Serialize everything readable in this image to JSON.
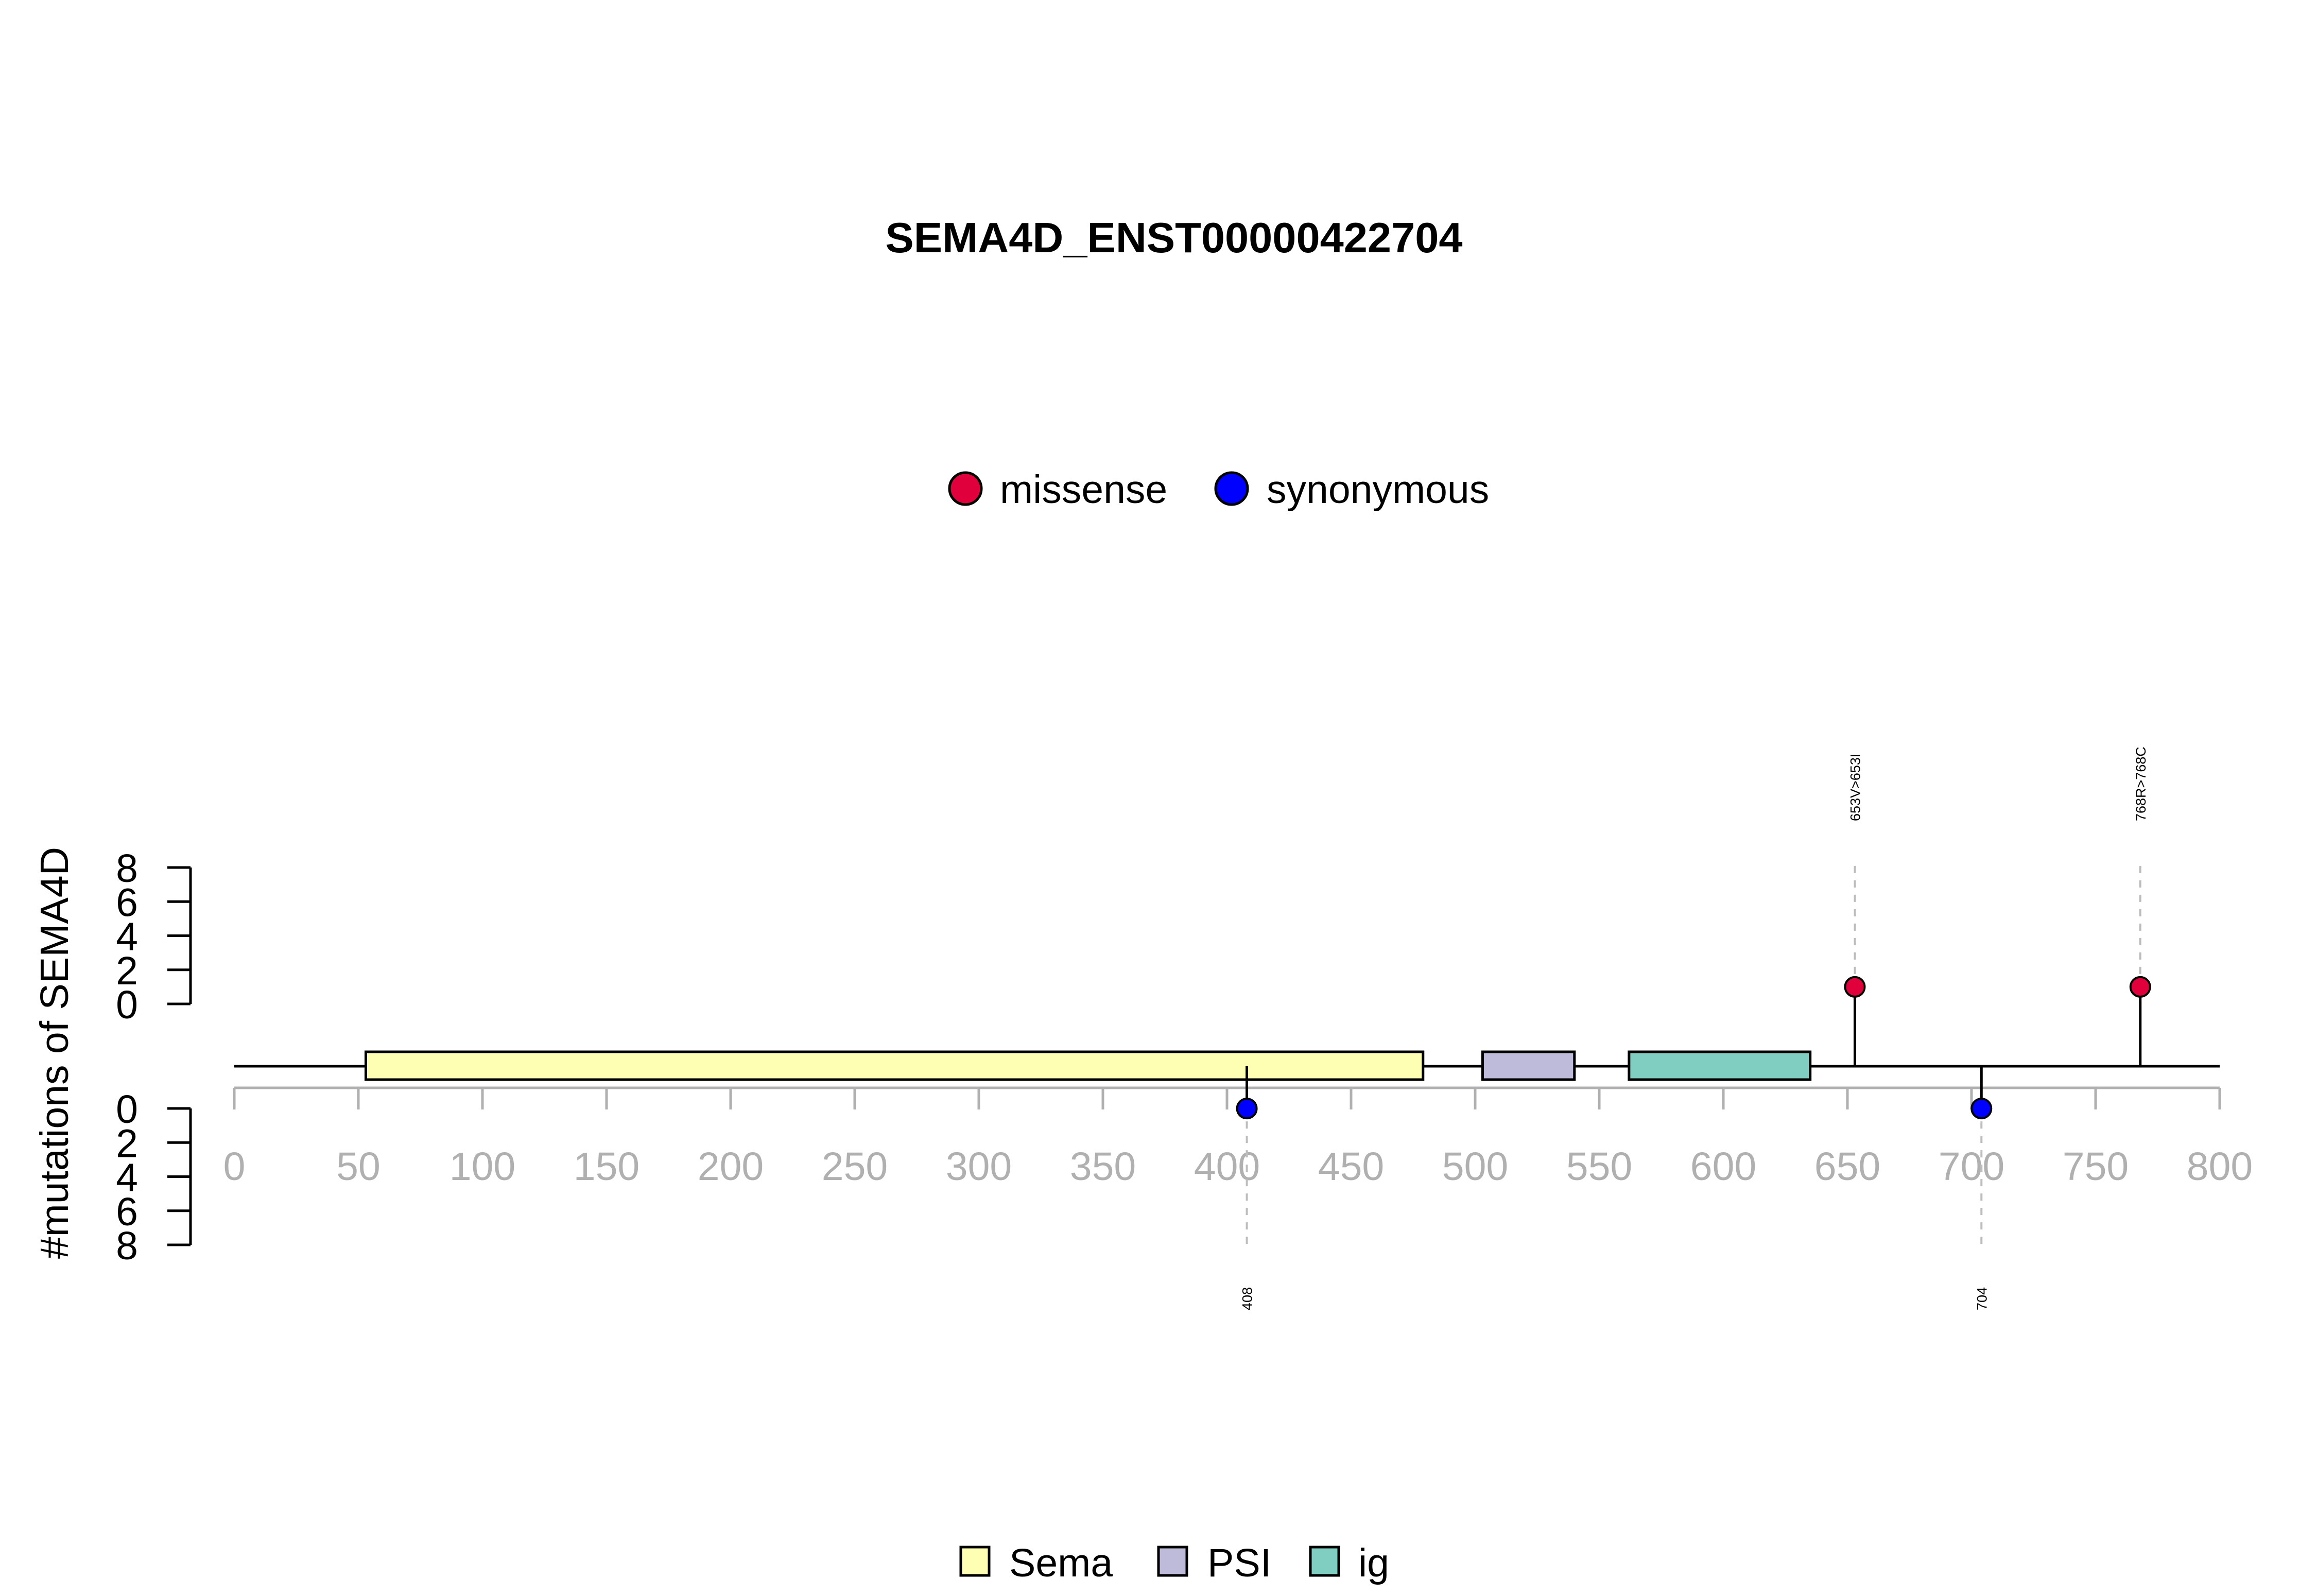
{
  "chart_data": {
    "type": "lollipop",
    "title": "SEMA4D_ENST00000422704",
    "ylabel": "#mutations of SEMA4D",
    "xlim": [
      0,
      800
    ],
    "x_ticks": [
      "0",
      "50",
      "100",
      "150",
      "200",
      "250",
      "300",
      "350",
      "400",
      "450",
      "500",
      "550",
      "600",
      "650",
      "700",
      "750",
      "800"
    ],
    "y_ticks": [
      "0",
      "2",
      "4",
      "6",
      "8"
    ],
    "ylim": [
      0,
      8
    ],
    "protein_length": 800,
    "mutation_legend": [
      {
        "label": "missense",
        "color": "#e0003c"
      },
      {
        "label": "synonymous",
        "color": "#0000ff"
      }
    ],
    "domain_legend": [
      {
        "label": "Sema",
        "color": "#ffffb3"
      },
      {
        "label": "PSI",
        "color": "#bebada"
      },
      {
        "label": "ig",
        "color": "#80cdc1"
      }
    ],
    "domains": [
      {
        "name": "Sema",
        "start": 53,
        "end": 479,
        "color": "#ffffb3"
      },
      {
        "name": "PSI",
        "start": 503,
        "end": 540,
        "color": "#bebada"
      },
      {
        "name": "ig",
        "start": 562,
        "end": 635,
        "color": "#80cdc1"
      }
    ],
    "mutations": [
      {
        "position": 653,
        "count": 1,
        "type": "missense",
        "label": "653V>653I",
        "color": "#e0003c"
      },
      {
        "position": 768,
        "count": 1,
        "type": "missense",
        "label": "768R>768C",
        "color": "#e0003c"
      },
      {
        "position": 408,
        "count": 1,
        "type": "synonymous",
        "label": "408",
        "color": "#0000ff"
      },
      {
        "position": 704,
        "count": 1,
        "type": "synonymous",
        "label": "704",
        "color": "#0000ff"
      }
    ]
  }
}
